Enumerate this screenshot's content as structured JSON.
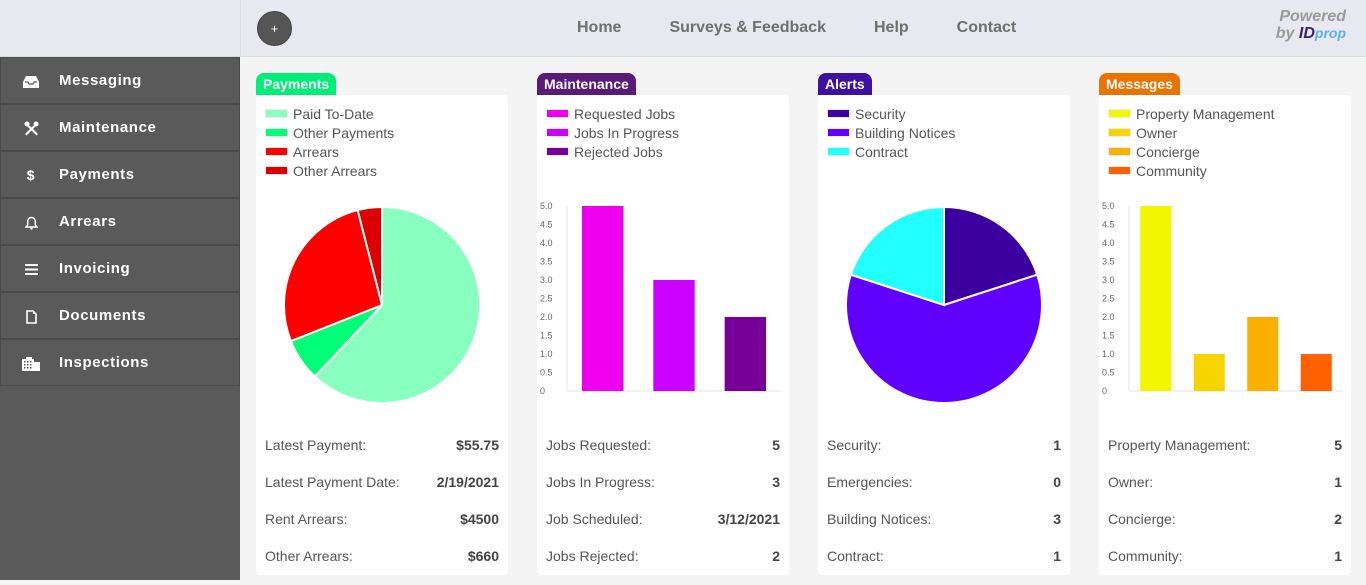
{
  "header": {
    "add_button_label": "+",
    "nav": [
      "Home",
      "Surveys & Feedback",
      "Help",
      "Contact"
    ],
    "brand": {
      "powered": "Powered",
      "by": "by",
      "id": "ID",
      "prop": "prop"
    }
  },
  "sidebar": {
    "items": [
      {
        "label": "Messaging",
        "icon": "inbox-icon"
      },
      {
        "label": "Maintenance",
        "icon": "tools-icon"
      },
      {
        "label": "Payments",
        "icon": "dollar-icon"
      },
      {
        "label": "Arrears",
        "icon": "bell-icon"
      },
      {
        "label": "Invoicing",
        "icon": "list-icon"
      },
      {
        "label": "Documents",
        "icon": "document-icon"
      },
      {
        "label": "Inspections",
        "icon": "building-icon"
      }
    ]
  },
  "cards": [
    {
      "title": "Payments",
      "accent": "#00ee77",
      "stats": [
        {
          "label": "Latest Payment:",
          "value": "$55.75"
        },
        {
          "label": "Latest Payment Date:",
          "value": "2/19/2021"
        },
        {
          "label": "Rent Arrears:",
          "value": "$4500"
        },
        {
          "label": "Other Arrears:",
          "value": "$660"
        }
      ]
    },
    {
      "title": "Maintenance",
      "accent": "#5a1a78",
      "stats": [
        {
          "label": "Jobs Requested:",
          "value": "5"
        },
        {
          "label": "Jobs In Progress:",
          "value": "3"
        },
        {
          "label": "Job Scheduled:",
          "value": "3/12/2021"
        },
        {
          "label": "Jobs Rejected:",
          "value": "2"
        }
      ]
    },
    {
      "title": "Alerts",
      "accent": "#3e0fa0",
      "stats": [
        {
          "label": "Security:",
          "value": "1"
        },
        {
          "label": "Emergencies:",
          "value": "0"
        },
        {
          "label": "Building Notices:",
          "value": "3"
        },
        {
          "label": "Contract:",
          "value": "1"
        }
      ]
    },
    {
      "title": "Messages",
      "accent": "#e87300",
      "stats": [
        {
          "label": "Property Management:",
          "value": "5"
        },
        {
          "label": "Owner:",
          "value": "1"
        },
        {
          "label": "Concierge:",
          "value": "2"
        },
        {
          "label": "Community:",
          "value": "1"
        }
      ]
    }
  ],
  "chart_data": [
    {
      "type": "pie",
      "title": "Payments",
      "legend": "top-left",
      "labels": [
        "Paid To-Date",
        "Other Payments",
        "Arrears",
        "Other Arrears"
      ],
      "values": [
        62,
        7,
        27,
        4
      ],
      "colors": [
        "#88ffbf",
        "#00ff77",
        "#ff0000",
        "#dd0000"
      ]
    },
    {
      "type": "bar",
      "title": "Maintenance",
      "legend": "top-left",
      "categories": [
        "Requested Jobs",
        "Jobs In Progress",
        "Rejected Jobs"
      ],
      "values": [
        5,
        3,
        2
      ],
      "colors": [
        "#ee00ee",
        "#cc00ff",
        "#770099"
      ],
      "yticks": [
        "0",
        "0.5",
        "1.0",
        "1.5",
        "2.0",
        "2.5",
        "3.0",
        "3.5",
        "4.0",
        "4.5",
        "5.0"
      ],
      "ylim": [
        0,
        5
      ],
      "grid": false
    },
    {
      "type": "pie",
      "title": "Alerts",
      "legend": "top-left",
      "labels": [
        "Security",
        "Building Notices",
        "Contract"
      ],
      "values": [
        1,
        3,
        1
      ],
      "colors": [
        "#3d00a0",
        "#6000ff",
        "#22ffff"
      ]
    },
    {
      "type": "bar",
      "title": "Messages",
      "legend": "top-left",
      "categories": [
        "Property Management",
        "Owner",
        "Concierge",
        "Community"
      ],
      "values": [
        5,
        1,
        2,
        1
      ],
      "colors": [
        "#f2f600",
        "#f6d400",
        "#fbb000",
        "#ff6000"
      ],
      "yticks": [
        "0",
        "0.5",
        "1.0",
        "1.5",
        "2.0",
        "2.5",
        "3.0",
        "3.5",
        "4.0",
        "4.5",
        "5.0"
      ],
      "ylim": [
        0,
        5
      ],
      "grid": false
    }
  ]
}
